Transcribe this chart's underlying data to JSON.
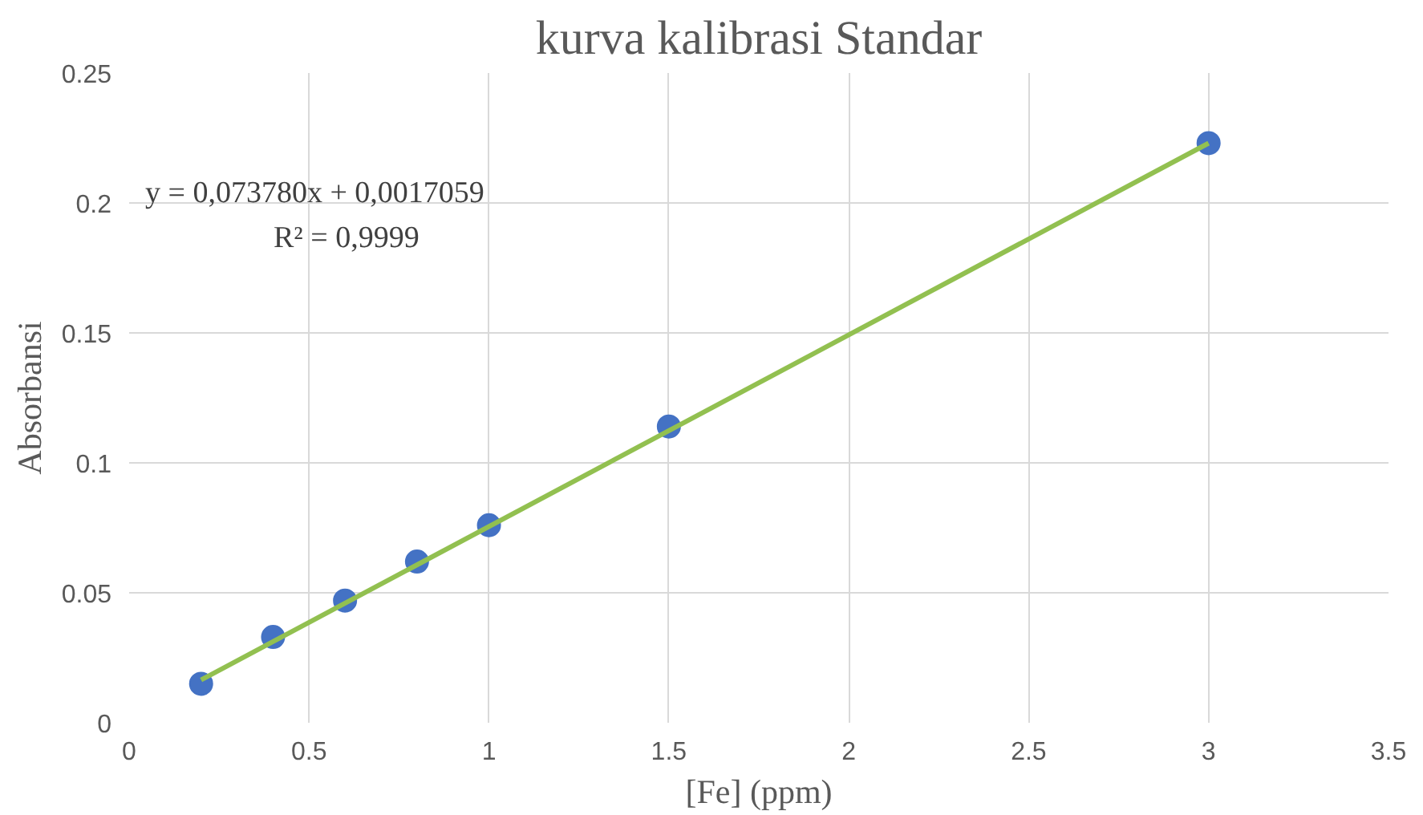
{
  "chart_data": {
    "type": "scatter",
    "title": "kurva kalibrasi Standar",
    "xlabel": "[Fe] (ppm)",
    "ylabel": "Absorbansi",
    "x": [
      0.2,
      0.4,
      0.6,
      0.8,
      1.0,
      1.5,
      3.0
    ],
    "series": [
      {
        "color": "#4472c4",
        "values": [
          0.015,
          0.033,
          0.047,
          0.062,
          0.076,
          0.114,
          0.223
        ]
      },
      {
        "type": "line",
        "color": "#92c050",
        "x": [
          0.2,
          3.0
        ],
        "values": [
          0.0165,
          0.223
        ],
        "marker": "none"
      }
    ],
    "xlim": [
      0,
      3.5
    ],
    "xticks": [
      0,
      0.5,
      1,
      1.5,
      2,
      2.5,
      3,
      3.5
    ],
    "ylim": [
      0,
      0.25
    ],
    "yticks": [
      0,
      0.05,
      0.1,
      0.15,
      0.2,
      0.25
    ],
    "grid": true,
    "marker": "circle",
    "annotations": [
      "y = 0,073780x + 0,0017059",
      "R² = 0,9999"
    ]
  }
}
